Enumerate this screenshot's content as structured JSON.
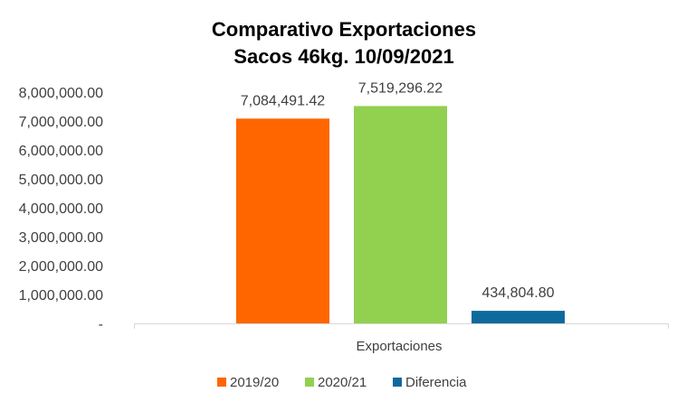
{
  "chart_data": {
    "type": "bar",
    "title": [
      "Comparativo  Exportaciones",
      "Sacos 46kg. 10/09/2021"
    ],
    "categories": [
      "Exportaciones"
    ],
    "series": [
      {
        "name": "2019/20",
        "values": [
          7084491.42
        ],
        "label": "7,084,491.42",
        "color": "#FF6600"
      },
      {
        "name": "2020/21",
        "values": [
          7519296.22
        ],
        "label": "7,519,296.22",
        "color": "#92D050"
      },
      {
        "name": "Diferencia",
        "values": [
          434804.8
        ],
        "label": "434,804.80",
        "color": "#0E6A9C"
      }
    ],
    "ylim": [
      0,
      8000000
    ],
    "yticks": [
      0,
      1000000,
      2000000,
      3000000,
      4000000,
      5000000,
      6000000,
      7000000,
      8000000
    ],
    "ytick_labels": [
      "-",
      "1,000,000.00",
      "2,000,000.00",
      "3,000,000.00",
      "4,000,000.00",
      "5,000,000.00",
      "6,000,000.00",
      "7,000,000.00",
      "8,000,000.00"
    ],
    "grid": false,
    "legend": "bottom",
    "xlabel": "",
    "ylabel": ""
  }
}
